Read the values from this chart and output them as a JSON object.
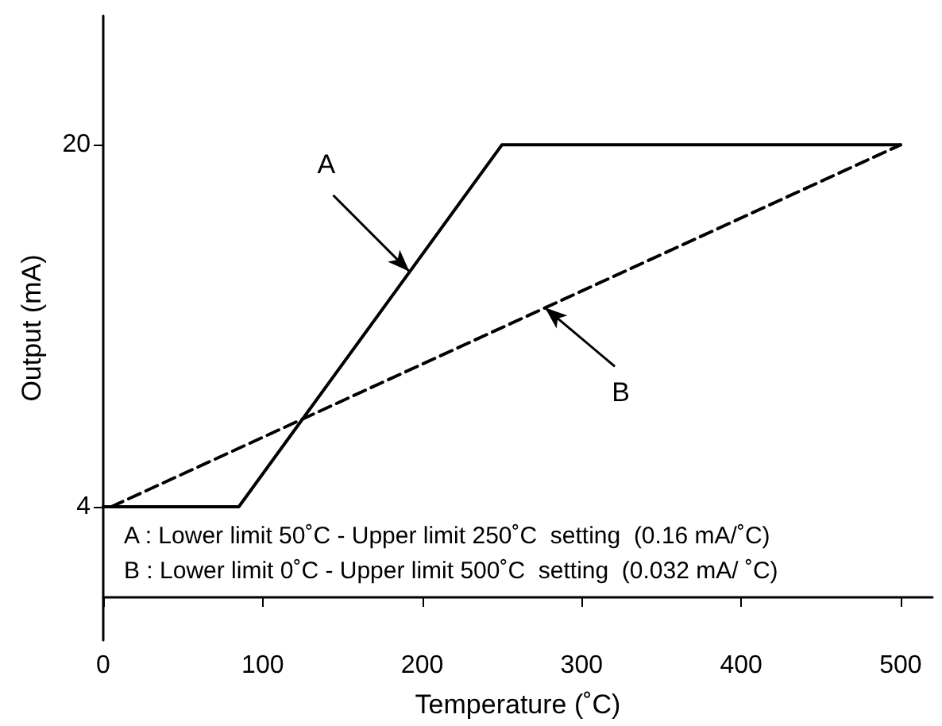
{
  "chart_data": {
    "type": "line",
    "xlabel": "Temperature (˚C)",
    "ylabel": "Output (mA)",
    "xlim": [
      0,
      520
    ],
    "xticks": [
      0,
      100,
      200,
      300,
      400,
      500
    ],
    "ylim": [
      -1.9,
      25.7
    ],
    "yticks": [
      4,
      20
    ],
    "series": [
      {
        "color": "#000000",
        "line_style": "solid",
        "x": [
          0,
          85,
          250,
          500
        ],
        "values": [
          4,
          4,
          20,
          20
        ]
      },
      {
        "color": "#000000",
        "line_style": "dashed",
        "x": [
          5,
          500
        ],
        "values": [
          4,
          20
        ]
      }
    ],
    "annotations": [
      {
        "text": "A",
        "x": 192,
        "y": 14.4
      },
      {
        "text": "B",
        "x": 277,
        "y": 12.8
      },
      "A : Lower limit 50˚C - Upper limit 250˚C  setting  (0.16 mA/˚C)",
      "B : Lower limit 0˚C - Upper limit 500˚C  setting  (0.032 mA/ ˚C)"
    ],
    "marker": "none",
    "grid": false
  }
}
